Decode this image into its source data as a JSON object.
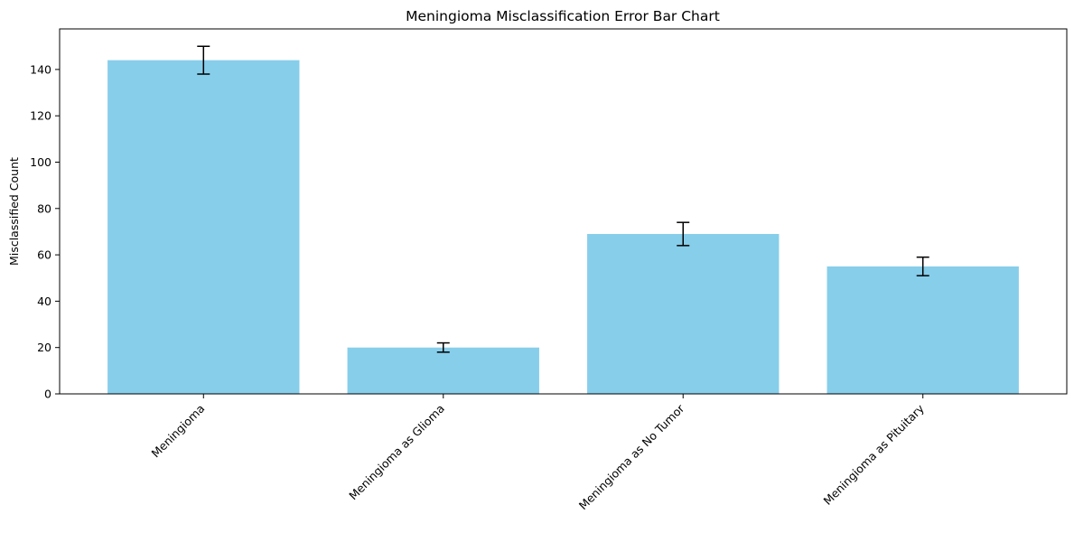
{
  "chart_data": {
    "type": "bar",
    "title": "Meningioma Misclassification Error Bar Chart",
    "xlabel": "",
    "ylabel": "Misclassified Count",
    "categories": [
      "Meningioma",
      "Meningioma as Glioma",
      "Meningioma as No Tumor",
      "Meningioma as Pituitary"
    ],
    "values": [
      144,
      20,
      69,
      55
    ],
    "errors": [
      6,
      2,
      5,
      4
    ],
    "ylim": [
      0,
      157.5
    ],
    "yticks": [
      0,
      20,
      40,
      60,
      80,
      100,
      120,
      140
    ],
    "bar_color": "#87ceeb",
    "error_color": "#000000",
    "grid": false,
    "legend": "none"
  }
}
